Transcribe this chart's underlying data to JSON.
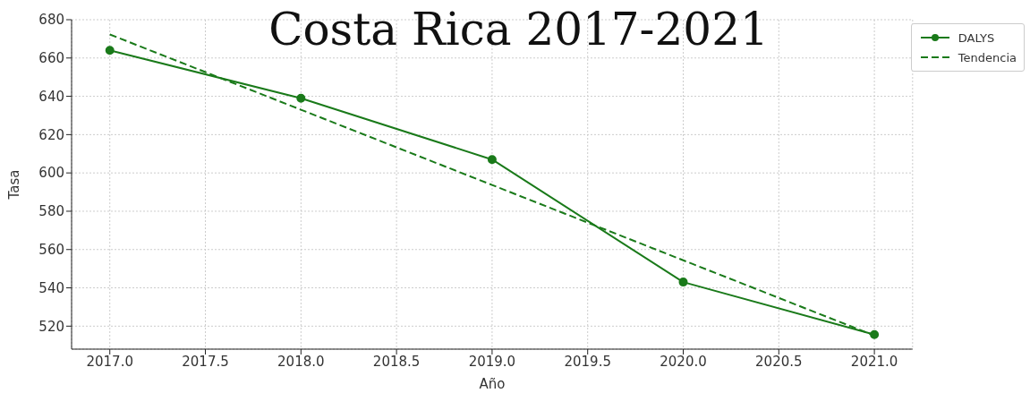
{
  "chart_data": {
    "type": "line",
    "title": "Costa Rica 2017-2021",
    "xlabel": "Año",
    "ylabel": "Tasa",
    "x": [
      2017,
      2018,
      2019,
      2020,
      2021
    ],
    "series": [
      {
        "name": "DALYS",
        "color": "#1a7a1a",
        "marker": "circle",
        "line_style": "solid",
        "values": [
          664,
          639,
          607,
          543,
          515.6
        ]
      },
      {
        "name": "Tendencia",
        "color": "#1a7a1a",
        "marker": "none",
        "line_style": "dashed",
        "values": [
          672.3,
          633.0,
          593.7,
          554.4,
          515.1
        ]
      }
    ],
    "xlim": [
      2016.8,
      2021.2
    ],
    "xticks": [
      {
        "value": 2017,
        "label": "2017.0"
      },
      {
        "value": 2017.5,
        "label": "2017.5"
      },
      {
        "value": 2018,
        "label": "2018.0"
      },
      {
        "value": 2018.5,
        "label": "2018.5"
      },
      {
        "value": 2019,
        "label": "2019.0"
      },
      {
        "value": 2019.5,
        "label": "2019.5"
      },
      {
        "value": 2020,
        "label": "2020.0"
      },
      {
        "value": 2020.5,
        "label": "2020.5"
      },
      {
        "value": 2021,
        "label": "2021.0"
      }
    ],
    "ylim": [
      508,
      680
    ],
    "yticks": [
      520,
      540,
      560,
      580,
      600,
      620,
      640,
      660,
      680
    ],
    "grid": true,
    "legend": "top right"
  }
}
